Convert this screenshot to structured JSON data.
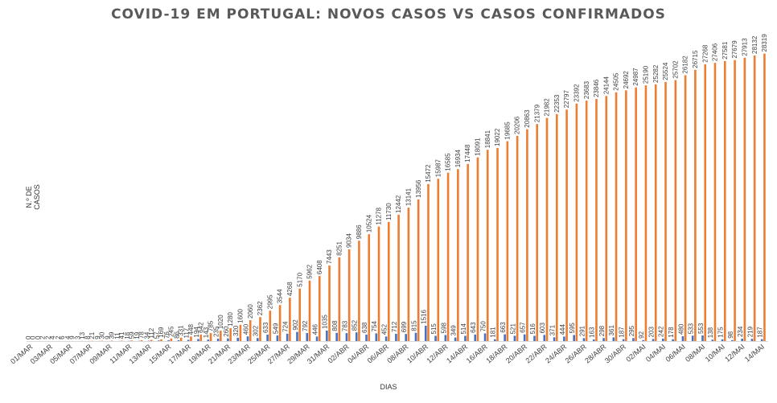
{
  "chart_data": {
    "type": "bar",
    "title": "COVID-19 EM PORTUGAL: NOVOS CASOS VS CASOS CONFIRMADOS",
    "xlabel": "DIAS",
    "ylabel": "N.º DE CASOS",
    "ylim": [
      0,
      29000
    ],
    "grid": false,
    "legend": "none",
    "categories": [
      "01/MAR",
      "02/MAR",
      "03/MAR",
      "04/MAR",
      "05/MAR",
      "06/MAR",
      "07/MAR",
      "08/MAR",
      "09/MAR",
      "10/MAR",
      "11/MAR",
      "12/MAR",
      "13/MAR",
      "14/MAR",
      "15/MAR",
      "16/MAR",
      "17/MAR",
      "18/MAR",
      "19/MAR",
      "20/MAR",
      "21/MAR",
      "22/MAR",
      "23/MAR",
      "24/MAR",
      "25/MAR",
      "26/MAR",
      "27/MAR",
      "28/MAR",
      "29/MAR",
      "30/MAR",
      "31/MAR",
      "01/ABR",
      "02/ABR",
      "03/ABR",
      "04/ABR",
      "05/ABR",
      "06/ABR",
      "07/ABR",
      "08/ABR",
      "09/ABR",
      "10/ABR",
      "11/ABR",
      "12/ABR",
      "13/ABR",
      "14/ABR",
      "15/ABR",
      "16/ABR",
      "17/ABR",
      "18/ABR",
      "19/ABR",
      "20/ABR",
      "21/ABR",
      "22/ABR",
      "23/ABR",
      "24/ABR",
      "25/ABR",
      "26/ABR",
      "27/ABR",
      "28/ABR",
      "29/ABR",
      "30/ABR",
      "01/MAI",
      "02/MAI",
      "03/MAI",
      "04/MAI",
      "05/MAI",
      "06/MAI",
      "07/MAI",
      "08/MAI",
      "09/MAI",
      "10/MAI",
      "11/MAI",
      "12/MAI",
      "13/MAI",
      "14/MAI"
    ],
    "tick_labels": [
      "01/MAR",
      "03/MAR",
      "05/MAR",
      "07/MAR",
      "09/MAR",
      "11/MAR",
      "13/MAR",
      "15/MAR",
      "17/MAR",
      "19/MAR",
      "21/MAR",
      "23/MAR",
      "25/MAR",
      "27/MAR",
      "29/MAR",
      "31/MAR",
      "02/ABR",
      "04/ABR",
      "06/ABR",
      "08/ABR",
      "10/ABR",
      "12/ABR",
      "14/ABR",
      "16/ABR",
      "18/ABR",
      "20/ABR",
      "22/ABR",
      "24/ABR",
      "26/ABR",
      "28/ABR",
      "30/ABR",
      "02/MAI",
      "04/MAI",
      "06/MAI",
      "08/MAI",
      "10/MAI",
      "12/MAI",
      "14/MAI"
    ],
    "series": [
      {
        "color": "#4472c4",
        "values": [
          0,
          0,
          2,
          2,
          4,
          3,
          8,
          9,
          9,
          11,
          18,
          19,
          34,
          57,
          76,
          86,
          117,
          194,
          143,
          235,
          260,
          320,
          460,
          302,
          633,
          549,
          724,
          902,
          792,
          446,
          1035,
          808,
          783,
          852,
          638,
          754,
          452,
          712,
          699,
          815,
          1516,
          515,
          598,
          349,
          514,
          643,
          750,
          181,
          663,
          521,
          657,
          516,
          603,
          371,
          444,
          595,
          291,
          163,
          298,
          361,
          187,
          295,
          92,
          203,
          242,
          178,
          480,
          533,
          553,
          138,
          175,
          98,
          234,
          219,
          187
        ]
      },
      {
        "color": "#ed7d31",
        "values": [
          0,
          2,
          4,
          6,
          9,
          13,
          21,
          30,
          39,
          41,
          59,
          78,
          112,
          169,
          245,
          331,
          448,
          642,
          785,
          1020,
          1280,
          1600,
          2060,
          2362,
          2995,
          3544,
          4268,
          5170,
          5962,
          6408,
          7443,
          8251,
          9034,
          9886,
          10524,
          11278,
          11730,
          12442,
          13141,
          13956,
          15472,
          15987,
          16585,
          16934,
          17448,
          18091,
          18841,
          19022,
          19685,
          20206,
          20863,
          21379,
          21982,
          22353,
          22797,
          23392,
          23683,
          23846,
          24144,
          24505,
          24692,
          24987,
          25190,
          25282,
          25524,
          25702,
          26182,
          26715,
          27268,
          27406,
          27581,
          27679,
          27913,
          28132,
          28319
        ]
      }
    ]
  }
}
